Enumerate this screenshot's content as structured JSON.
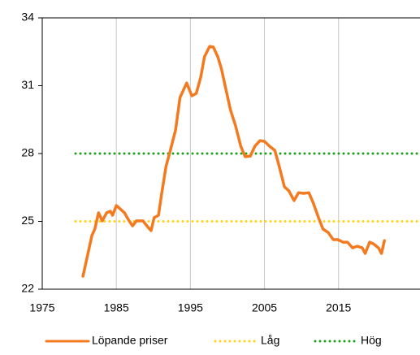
{
  "chart_data": {
    "type": "line",
    "xlim": [
      1975,
      2026
    ],
    "xticks": [
      1975,
      1985,
      1995,
      2005,
      2015
    ],
    "ylim": [
      22,
      34
    ],
    "yticks": [
      22,
      25,
      28,
      31,
      34
    ],
    "grid": "x",
    "legend": "bottom",
    "series": [
      {
        "name": "Löpande priser",
        "color": "#f47a20",
        "style": "solid",
        "x": [
          1980.5,
          1981.1,
          1981.7,
          1982.1,
          1982.6,
          1983.1,
          1983.7,
          1984.2,
          1984.5,
          1985.0,
          1985.5,
          1986.1,
          1986.6,
          1987.2,
          1987.7,
          1988.6,
          1989.3,
          1989.7,
          1990.1,
          1990.7,
          1991.1,
          1991.7,
          1992.3,
          1993.0,
          1993.6,
          1994.5,
          1995.2,
          1995.8,
          1996.4,
          1996.9,
          1997.6,
          1998.1,
          1998.7,
          1999.2,
          1999.8,
          2000.4,
          2001.1,
          2001.8,
          2002.4,
          2003.1,
          2003.7,
          2004.4,
          2005.0,
          2005.7,
          2006.4,
          2007.0,
          2007.7,
          2008.3,
          2009.0,
          2009.6,
          2010.3,
          2011.0,
          2011.6,
          2012.3,
          2012.9,
          2013.6,
          2014.3,
          2014.9,
          2015.6,
          2016.2,
          2016.9,
          2017.5,
          2018.2,
          2018.6,
          2019.2,
          2019.7,
          2020.4,
          2020.8,
          2021.2
        ],
        "values": [
          22.57,
          23.47,
          24.37,
          24.66,
          25.38,
          25.02,
          25.38,
          25.45,
          25.27,
          25.7,
          25.56,
          25.38,
          25.09,
          24.8,
          25.02,
          25.02,
          24.73,
          24.59,
          25.16,
          25.27,
          26.17,
          27.42,
          28.14,
          29.04,
          30.48,
          31.12,
          30.55,
          30.66,
          31.38,
          32.28,
          32.74,
          32.71,
          32.28,
          31.74,
          30.84,
          29.94,
          29.22,
          28.32,
          27.86,
          27.89,
          28.32,
          28.57,
          28.54,
          28.32,
          28.14,
          27.42,
          26.53,
          26.35,
          25.92,
          26.27,
          26.24,
          26.27,
          25.81,
          25.16,
          24.66,
          24.51,
          24.19,
          24.19,
          24.08,
          24.08,
          23.83,
          23.9,
          23.83,
          23.58,
          24.08,
          24.01,
          23.83,
          23.58,
          24.15
        ]
      },
      {
        "name": "Låg",
        "color": "#ffd21f",
        "style": "dotted",
        "x": [
          1979.5,
          2026
        ],
        "values": [
          25,
          25
        ]
      },
      {
        "name": "Hög",
        "color": "#1aa01a",
        "style": "dotted",
        "x": [
          1979.5,
          2026
        ],
        "values": [
          28,
          28
        ]
      }
    ]
  }
}
